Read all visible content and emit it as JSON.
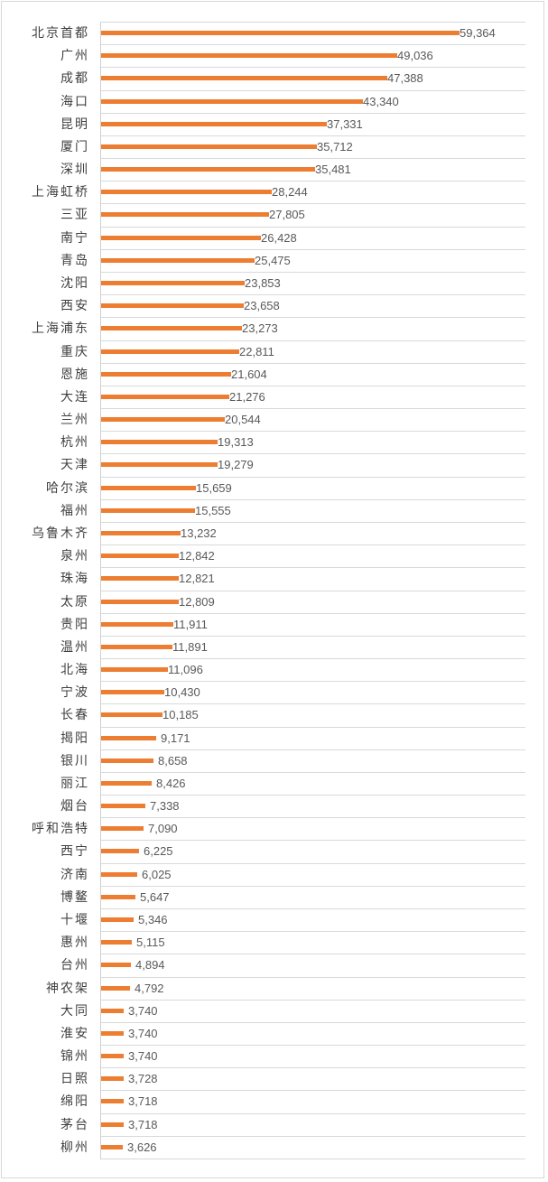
{
  "chart_data": {
    "type": "bar",
    "orientation": "horizontal",
    "title": "",
    "xlabel": "",
    "ylabel": "",
    "xlim": [
      0,
      70000
    ],
    "grid": true,
    "legend": null,
    "bar_color": "#ed7d31",
    "categories": [
      "北京首都",
      "广州",
      "成都",
      "海口",
      "昆明",
      "厦门",
      "深圳",
      "上海虹桥",
      "三亚",
      "南宁",
      "青岛",
      "沈阳",
      "西安",
      "上海浦东",
      "重庆",
      "恩施",
      "大连",
      "兰州",
      "杭州",
      "天津",
      "哈尔滨",
      "福州",
      "乌鲁木齐",
      "泉州",
      "珠海",
      "太原",
      "贵阳",
      "温州",
      "北海",
      "宁波",
      "长春",
      "揭阳",
      "银川",
      "丽江",
      "烟台",
      "呼和浩特",
      "西宁",
      "济南",
      "博鳌",
      "十堰",
      "惠州",
      "台州",
      "神农架",
      "大同",
      "淮安",
      "锦州",
      "日照",
      "绵阳",
      "茅台",
      "柳州"
    ],
    "values": [
      59364,
      49036,
      47388,
      43340,
      37331,
      35712,
      35481,
      28244,
      27805,
      26428,
      25475,
      23853,
      23658,
      23273,
      22811,
      21604,
      21276,
      20544,
      19313,
      19279,
      15659,
      15555,
      13232,
      12842,
      12821,
      12809,
      11911,
      11891,
      11096,
      10430,
      10185,
      9171,
      8658,
      8426,
      7338,
      7090,
      6225,
      6025,
      5647,
      5346,
      5115,
      4894,
      4792,
      3740,
      3740,
      3740,
      3728,
      3718,
      3718,
      3626
    ],
    "value_labels": [
      "59,364",
      "49,036",
      "47,388",
      "43,340",
      "37,331",
      "35,712",
      "35,481",
      "28,244",
      "27,805",
      "26,428",
      "25,475",
      "23,853",
      "23,658",
      "23,273",
      "22,811",
      "21,604",
      "21,276",
      "20,544",
      "19,313",
      "19,279",
      "15,659",
      "15,555",
      "13,232",
      "12,842",
      "12,821",
      "12,809",
      "11,911",
      "11,891",
      "11,096",
      "10,430",
      "10,185",
      "9,171",
      "8,658",
      "8,426",
      "7,338",
      "7,090",
      "6,225",
      "6,025",
      "5,647",
      "5,346",
      "5,115",
      "4,894",
      "4,792",
      "3,740",
      "3,740",
      "3,740",
      "3,728",
      "3,718",
      "3,718",
      "3,626"
    ]
  }
}
